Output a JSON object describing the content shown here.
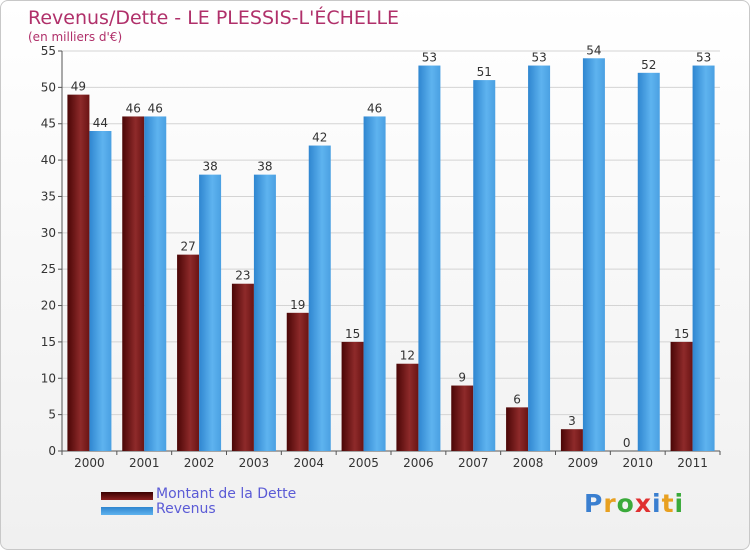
{
  "header": {
    "title": "Revenus/Dette - LE PLESSIS-L'ÉCHELLE",
    "subtitle": "(en milliers d'€)"
  },
  "legend": {
    "debt_label": "Montant de la Dette",
    "revenue_label": "Revenus"
  },
  "logo": {
    "letters": [
      "P",
      "r",
      "o",
      "x",
      "i",
      "t",
      "i"
    ],
    "colors": [
      "#3a7fd0",
      "#e8a020",
      "#3aaa3a",
      "#e03030",
      "#3a7fd0",
      "#e8a020",
      "#3aaa3a"
    ]
  },
  "colors": {
    "debt": "#7a1a1a",
    "revenue": "#4ea3e4",
    "title": "#b0306a",
    "legend_text": "#5b5bd6"
  },
  "chart_data": {
    "type": "bar",
    "title": "Revenus/Dette - LE PLESSIS-L'ÉCHELLE",
    "subtitle": "(en milliers d'€)",
    "categories": [
      "2000",
      "2001",
      "2002",
      "2003",
      "2004",
      "2005",
      "2006",
      "2007",
      "2008",
      "2009",
      "2010",
      "2011"
    ],
    "series": [
      {
        "name": "Montant de la Dette",
        "values": [
          49,
          46,
          27,
          23,
          19,
          15,
          12,
          9,
          6,
          3,
          0,
          15
        ]
      },
      {
        "name": "Revenus",
        "values": [
          44,
          46,
          38,
          38,
          42,
          46,
          53,
          51,
          53,
          54,
          52,
          53
        ]
      }
    ],
    "ylim": [
      0,
      55
    ],
    "yticks": [
      0,
      5,
      10,
      15,
      20,
      25,
      30,
      35,
      40,
      45,
      50,
      55
    ],
    "grid": true,
    "legend_position": "bottom-left"
  }
}
